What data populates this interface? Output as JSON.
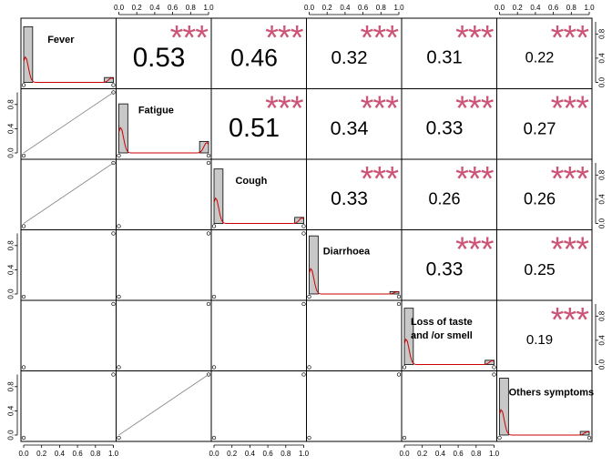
{
  "chart_data": {
    "type": "scatter-matrix",
    "variables": [
      "Fever",
      "Fatigue",
      "Cough",
      "Diarrhoea",
      "Loss of taste and /or smell",
      "Others symptoms"
    ],
    "panel_labels": [
      "Fever",
      "Fatigue",
      "Cough",
      "Diarrhoea",
      [
        "Loss of taste",
        "and /or smell"
      ],
      "Others symptoms"
    ],
    "axis_range": [
      0,
      1
    ],
    "tick_labels": [
      "0.0",
      "0.2",
      "0.4",
      "0.6",
      "0.8",
      "1.0"
    ],
    "significance_marker": "***",
    "significance_color": "#cc5577",
    "histogram_color": "#c8c8c8",
    "density_color": "#cc0000",
    "correlations": [
      {
        "row": 0,
        "col": 1,
        "r": "0.53",
        "stars": "***"
      },
      {
        "row": 0,
        "col": 2,
        "r": "0.46",
        "stars": "***"
      },
      {
        "row": 0,
        "col": 3,
        "r": "0.32",
        "stars": "***"
      },
      {
        "row": 0,
        "col": 4,
        "r": "0.31",
        "stars": "***"
      },
      {
        "row": 0,
        "col": 5,
        "r": "0.22",
        "stars": "***"
      },
      {
        "row": 1,
        "col": 2,
        "r": "0.51",
        "stars": "***"
      },
      {
        "row": 1,
        "col": 3,
        "r": "0.34",
        "stars": "***"
      },
      {
        "row": 1,
        "col": 4,
        "r": "0.33",
        "stars": "***"
      },
      {
        "row": 1,
        "col": 5,
        "r": "0.27",
        "stars": "***"
      },
      {
        "row": 2,
        "col": 3,
        "r": "0.33",
        "stars": "***"
      },
      {
        "row": 2,
        "col": 4,
        "r": "0.26",
        "stars": "***"
      },
      {
        "row": 2,
        "col": 5,
        "r": "0.26",
        "stars": "***"
      },
      {
        "row": 3,
        "col": 4,
        "r": "0.33",
        "stars": "***"
      },
      {
        "row": 3,
        "col": 5,
        "r": "0.25",
        "stars": "***"
      },
      {
        "row": 4,
        "col": 5,
        "r": "0.19",
        "stars": "***"
      }
    ],
    "histograms": [
      {
        "bins": [
          0,
          0.1,
          0.9,
          1.0
        ],
        "zero_prop": 0.92,
        "one_prop": 0.08
      },
      {
        "bins": [
          0,
          0.1,
          0.9,
          1.0
        ],
        "zero_prop": 0.81,
        "one_prop": 0.19
      },
      {
        "bins": [
          0,
          0.1,
          0.9,
          1.0
        ],
        "zero_prop": 0.9,
        "one_prop": 0.1
      },
      {
        "bins": [
          0,
          0.1,
          0.9,
          1.0
        ],
        "zero_prop": 0.96,
        "one_prop": 0.04
      },
      {
        "bins": [
          0,
          0.1,
          0.9,
          1.0
        ],
        "zero_prop": 0.93,
        "one_prop": 0.07
      },
      {
        "bins": [
          0,
          0.1,
          0.9,
          1.0
        ],
        "zero_prop": 0.94,
        "one_prop": 0.06
      }
    ],
    "fit_lines": [
      {
        "row": 1,
        "col": 0,
        "x": [
          0,
          1
        ],
        "y": [
          0,
          1
        ]
      },
      {
        "row": 2,
        "col": 0,
        "x": [
          0,
          1
        ],
        "y": [
          0,
          1
        ]
      },
      {
        "row": 5,
        "col": 1,
        "x": [
          0,
          1
        ],
        "y": [
          0,
          1
        ]
      }
    ],
    "scatter_points": [
      [
        0,
        0
      ],
      [
        1,
        1
      ]
    ]
  }
}
